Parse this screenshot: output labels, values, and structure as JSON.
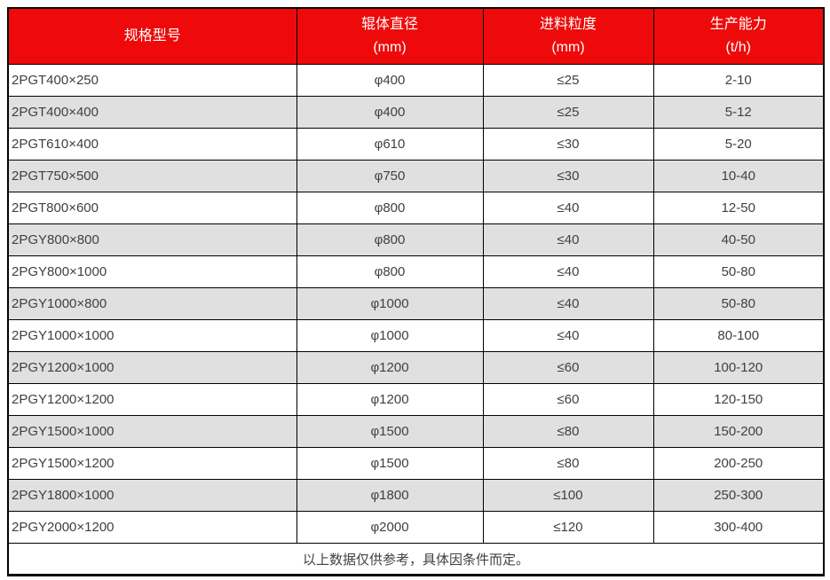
{
  "colors": {
    "header_bg": "#ee0a0a",
    "header_text": "#ffffff",
    "stripe_bg": "#e0e0e0",
    "row_bg": "#ffffff",
    "border": "#000000",
    "body_text": "#404040"
  },
  "table": {
    "headers": [
      {
        "title": "规格型号",
        "unit": ""
      },
      {
        "title": "辊体直径",
        "unit": "(mm)"
      },
      {
        "title": "进料粒度",
        "unit": "(mm)"
      },
      {
        "title": "生产能力",
        "unit": "(t/h)"
      }
    ],
    "rows": [
      [
        "2PGT400×250",
        "φ400",
        "≤25",
        "2-10"
      ],
      [
        "2PGT400×400",
        "φ400",
        "≤25",
        "5-12"
      ],
      [
        "2PGT610×400",
        "φ610",
        "≤30",
        "5-20"
      ],
      [
        "2PGT750×500",
        "φ750",
        "≤30",
        "10-40"
      ],
      [
        "2PGT800×600",
        "φ800",
        "≤40",
        "12-50"
      ],
      [
        "2PGY800×800",
        "φ800",
        "≤40",
        "40-50"
      ],
      [
        "2PGY800×1000",
        "φ800",
        "≤40",
        "50-80"
      ],
      [
        "2PGY1000×800",
        "φ1000",
        "≤40",
        "50-80"
      ],
      [
        "2PGY1000×1000",
        "φ1000",
        "≤40",
        "80-100"
      ],
      [
        "2PGY1200×1000",
        "φ1200",
        "≤60",
        "100-120"
      ],
      [
        "2PGY1200×1200",
        "φ1200",
        "≤60",
        "120-150"
      ],
      [
        "2PGY1500×1000",
        "φ1500",
        "≤80",
        "150-200"
      ],
      [
        "2PGY1500×1200",
        "φ1500",
        "≤80",
        "200-250"
      ],
      [
        "2PGY1800×1000",
        "φ1800",
        "≤100",
        "250-300"
      ],
      [
        "2PGY2000×1200",
        "φ2000",
        "≤120",
        "300-400"
      ]
    ],
    "footer_note": "以上数据仅供参考，具体因条件而定。"
  }
}
